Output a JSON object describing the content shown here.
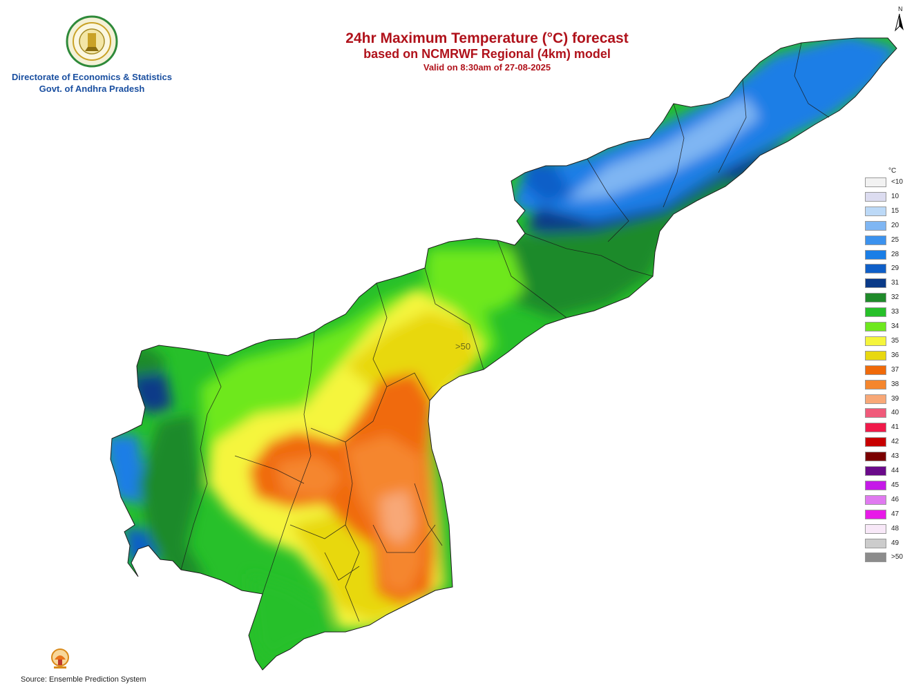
{
  "title": {
    "line1": "24hr Maximum Temperature (°C) forecast",
    "line2": "based on NCMRWF Regional (4km) model",
    "line3": "Valid on 8:30am of 27-08-2025"
  },
  "organization": {
    "line1": "Directorate of Economics & Statistics",
    "line2": "Govt. of Andhra Pradesh"
  },
  "north_arrow": "N",
  "contour_label": ">50",
  "source": "Source: Ensemble Prediction System",
  "legend": {
    "unit": "°C",
    "items": [
      {
        "label": "<10",
        "color": "#f2f2f2"
      },
      {
        "label": "10",
        "color": "#dcdcf0"
      },
      {
        "label": "15",
        "color": "#bcd9f7"
      },
      {
        "label": "20",
        "color": "#7fb6f3"
      },
      {
        "label": "25",
        "color": "#3c92ee"
      },
      {
        "label": "28",
        "color": "#1a7ee6"
      },
      {
        "label": "29",
        "color": "#0f5fc8"
      },
      {
        "label": "31",
        "color": "#0a3a88"
      },
      {
        "label": "32",
        "color": "#1f8a2a"
      },
      {
        "label": "33",
        "color": "#27c02a"
      },
      {
        "label": "34",
        "color": "#6ee81e"
      },
      {
        "label": "35",
        "color": "#f5f53c"
      },
      {
        "label": "36",
        "color": "#e8d810"
      },
      {
        "label": "37",
        "color": "#f06a0a"
      },
      {
        "label": "38",
        "color": "#f5862d"
      },
      {
        "label": "39",
        "color": "#f8a877"
      },
      {
        "label": "40",
        "color": "#f05a7a"
      },
      {
        "label": "41",
        "color": "#f01a4a"
      },
      {
        "label": "42",
        "color": "#c80000"
      },
      {
        "label": "43",
        "color": "#7a0000"
      },
      {
        "label": "44",
        "color": "#6a0a8a"
      },
      {
        "label": "45",
        "color": "#c51ae8"
      },
      {
        "label": "46",
        "color": "#e07af0"
      },
      {
        "label": "47",
        "color": "#e81ae8"
      },
      {
        "label": "48",
        "color": "#f8e8f8"
      },
      {
        "label": "49",
        "color": "#cccccc"
      },
      {
        "label": ">50",
        "color": "#8c8c8c"
      }
    ]
  }
}
